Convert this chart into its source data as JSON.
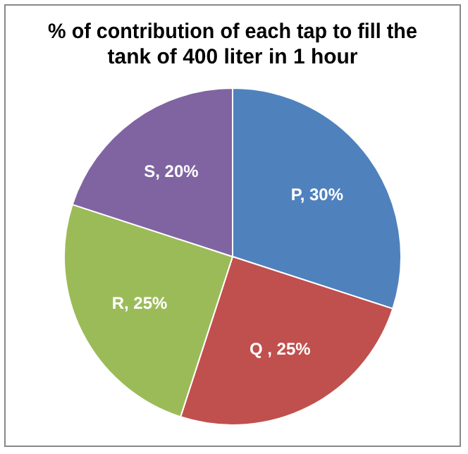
{
  "chart_data": {
    "type": "pie",
    "title": "% of contribution of each tap to fill the tank of 400 liter in 1 hour",
    "categories": [
      "P",
      "Q ",
      "R",
      "S"
    ],
    "values": [
      30,
      25,
      25,
      20
    ],
    "colors": [
      "#4f81bd",
      "#c0504d",
      "#9bbb59",
      "#8064a2"
    ],
    "value_labels": [
      "30%",
      "25%",
      "25%",
      "20%"
    ],
    "legend": false
  }
}
